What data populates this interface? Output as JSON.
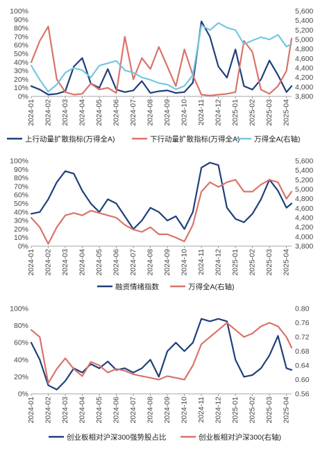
{
  "colors": {
    "navy": "#1E3F7A",
    "coral": "#D9736B",
    "cyan": "#73C7E0"
  },
  "chart_data": [
    {
      "type": "line",
      "title": "",
      "x_tick_labels": [
        "2024-01",
        "2024-02",
        "2024-03",
        "2024-04",
        "2024-05",
        "2024-06",
        "2024-07",
        "2024-08",
        "2024-09",
        "2024-10",
        "2024-11",
        "2024-12",
        "2025-01",
        "2025-02",
        "2025-03",
        "2025-04"
      ],
      "left_axis": {
        "ticks": [
          "0%",
          "10%",
          "20%",
          "30%",
          "40%",
          "50%",
          "60%",
          "70%",
          "80%",
          "90%",
          "100%"
        ],
        "ylim": [
          0,
          1
        ]
      },
      "right_axis": {
        "ticks": [
          "3,800",
          "4,000",
          "4,200",
          "4,400",
          "4,600",
          "4,800",
          "5,000",
          "5,200",
          "5,400",
          "5,600"
        ],
        "ylim": [
          3800,
          5600
        ]
      },
      "grid": false,
      "legend_position": "bottom",
      "x": [
        0,
        0.5,
        1,
        1.5,
        2,
        2.5,
        3,
        3.5,
        4,
        4.5,
        5,
        5.5,
        6,
        6.5,
        7,
        7.5,
        8,
        8.5,
        9,
        9.5,
        10,
        10.5,
        11,
        11.5,
        12,
        12.5,
        13,
        13.5,
        14,
        14.5,
        15,
        15.3
      ],
      "series": [
        {
          "name": "上行动量扩散指标(万得全A)",
          "color": "#1E3F7A",
          "axis": "left",
          "values": [
            0.12,
            0.08,
            0.02,
            0.03,
            0.06,
            0.35,
            0.45,
            0.15,
            0.1,
            0.32,
            0.08,
            0.05,
            0.07,
            0.18,
            0.04,
            0.06,
            0.07,
            0.04,
            0.05,
            0.16,
            0.88,
            0.7,
            0.35,
            0.22,
            0.55,
            0.12,
            0.08,
            0.2,
            0.42,
            0.25,
            0.05,
            0.12
          ]
        },
        {
          "name": "下行动量扩散指标(万得全A)",
          "color": "#D9736B",
          "axis": "left",
          "values": [
            0.4,
            0.65,
            0.82,
            0.2,
            0.05,
            0.02,
            0.03,
            0.15,
            0.08,
            0.1,
            0.04,
            0.7,
            0.2,
            0.45,
            0.32,
            0.58,
            0.35,
            0.12,
            0.55,
            0.25,
            0.02,
            0.01,
            0.02,
            0.03,
            0.05,
            0.65,
            0.52,
            0.08,
            0.03,
            0.12,
            0.3,
            0.68
          ]
        },
        {
          "name": "万得全A(右轴)",
          "color": "#73C7E0",
          "axis": "right",
          "values": [
            4450,
            4150,
            3900,
            4050,
            4300,
            4400,
            4350,
            4200,
            4450,
            4500,
            4550,
            4350,
            4300,
            4200,
            4150,
            4080,
            4050,
            3950,
            4020,
            4250,
            5300,
            5200,
            5350,
            5250,
            5200,
            4900,
            4980,
            5050,
            5000,
            5100,
            4850,
            4900
          ]
        }
      ]
    },
    {
      "type": "line",
      "title": "",
      "x_tick_labels": [
        "2024-01",
        "2024-02",
        "2024-03",
        "2024-04",
        "2024-05",
        "2024-06",
        "2024-07",
        "2024-08",
        "2024-09",
        "2024-10",
        "2024-11",
        "2024-12",
        "2025-01",
        "2025-02",
        "2025-03",
        "2025-04"
      ],
      "left_axis": {
        "ticks": [
          "0%",
          "10%",
          "20%",
          "30%",
          "40%",
          "50%",
          "60%",
          "70%",
          "80%",
          "90%",
          "100%"
        ],
        "ylim": [
          0,
          1
        ]
      },
      "right_axis": {
        "ticks": [
          "3,800",
          "4,000",
          "4,200",
          "4,400",
          "4,600",
          "4,800",
          "5,000",
          "5,200",
          "5,400",
          "5,600"
        ],
        "ylim": [
          3800,
          5600
        ]
      },
      "grid": false,
      "legend_position": "bottom",
      "x": [
        0,
        0.5,
        1,
        1.5,
        2,
        2.5,
        3,
        3.5,
        4,
        4.5,
        5,
        5.5,
        6,
        6.5,
        7,
        7.5,
        8,
        8.5,
        9,
        9.5,
        10,
        10.5,
        11,
        11.5,
        12,
        12.5,
        13,
        13.5,
        14,
        14.5,
        15,
        15.3
      ],
      "series": [
        {
          "name": "融资情绪指数",
          "color": "#1E3F7A",
          "axis": "left",
          "values": [
            0.38,
            0.4,
            0.55,
            0.75,
            0.88,
            0.85,
            0.65,
            0.5,
            0.4,
            0.55,
            0.5,
            0.35,
            0.2,
            0.3,
            0.45,
            0.4,
            0.3,
            0.35,
            0.2,
            0.4,
            0.92,
            0.98,
            0.95,
            0.45,
            0.32,
            0.28,
            0.38,
            0.55,
            0.78,
            0.65,
            0.45,
            0.5
          ]
        },
        {
          "name": "万得全A(右轴)",
          "color": "#D9736B",
          "axis": "right",
          "values": [
            4400,
            4200,
            3850,
            4200,
            4450,
            4500,
            4450,
            4550,
            4500,
            4450,
            4400,
            4250,
            4150,
            4100,
            4200,
            4050,
            4050,
            3980,
            3900,
            4250,
            4950,
            5150,
            5050,
            5150,
            5200,
            4950,
            4950,
            5100,
            5200,
            5150,
            4800,
            4950
          ]
        }
      ]
    },
    {
      "type": "line",
      "title": "",
      "x_tick_labels": [
        "2024-01",
        "2024-02",
        "2024-03",
        "2024-04",
        "2024-05",
        "2024-06",
        "2024-07",
        "2024-08",
        "2024-09",
        "2024-10",
        "2024-11",
        "2024-12",
        "2025-01",
        "2025-02",
        "2025-03",
        "2025-04"
      ],
      "left_axis": {
        "ticks": [
          "0%",
          "20%",
          "40%",
          "60%",
          "80%",
          "100%"
        ],
        "ylim": [
          0,
          1
        ]
      },
      "right_axis": {
        "ticks": [
          "0.56",
          "0.60",
          "0.64",
          "0.68",
          "0.72",
          "0.76",
          "0.80"
        ],
        "ylim": [
          0.56,
          0.8
        ]
      },
      "grid": false,
      "legend_position": "bottom",
      "x": [
        0,
        0.5,
        1,
        1.5,
        2,
        2.5,
        3,
        3.5,
        4,
        4.5,
        5,
        5.5,
        6,
        6.5,
        7,
        7.5,
        8,
        8.5,
        9,
        9.5,
        10,
        10.5,
        11,
        11.5,
        12,
        12.5,
        13,
        13.5,
        14,
        14.5,
        15,
        15.3
      ],
      "series": [
        {
          "name": "创业板相对沪深300强势股占比",
          "color": "#1E3F7A",
          "axis": "left",
          "values": [
            0.6,
            0.4,
            0.1,
            0.05,
            0.15,
            0.3,
            0.25,
            0.35,
            0.3,
            0.38,
            0.28,
            0.3,
            0.25,
            0.3,
            0.4,
            0.2,
            0.5,
            0.6,
            0.5,
            0.6,
            0.88,
            0.85,
            0.88,
            0.85,
            0.4,
            0.2,
            0.22,
            0.3,
            0.45,
            0.68,
            0.3,
            0.28
          ]
        },
        {
          "name": "创业板相对沪深300(右轴)",
          "color": "#D9736B",
          "axis": "right",
          "values": [
            0.74,
            0.72,
            0.59,
            0.63,
            0.66,
            0.63,
            0.61,
            0.65,
            0.64,
            0.62,
            0.63,
            0.625,
            0.615,
            0.61,
            0.605,
            0.6,
            0.61,
            0.605,
            0.6,
            0.64,
            0.7,
            0.72,
            0.74,
            0.76,
            0.74,
            0.72,
            0.73,
            0.75,
            0.76,
            0.75,
            0.72,
            0.69
          ]
        }
      ]
    }
  ]
}
